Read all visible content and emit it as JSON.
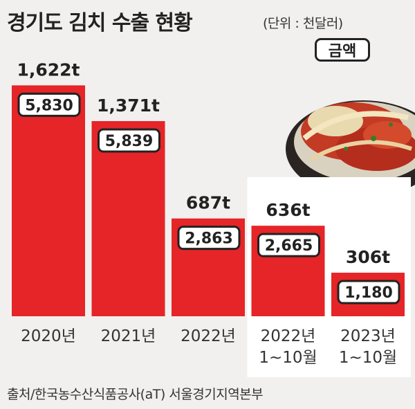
{
  "header": {
    "title": "경기도 김치 수출 현황",
    "unit": "(단위 : 천달러)",
    "legend_badge": "금액"
  },
  "footer": {
    "source": "출처/한국농수산식품공사(aT) 서울경기지역본부"
  },
  "colors": {
    "bar": "#e52528",
    "background": "#f1f0ee",
    "panel": "#ffffff",
    "text": "#222222"
  },
  "chart_data": {
    "type": "bar",
    "title": "경기도 김치 수출 현황",
    "categories": [
      [
        "2020년"
      ],
      [
        "2021년"
      ],
      [
        "2022년"
      ],
      [
        "2022년",
        "1~10월"
      ],
      [
        "2023년",
        "1~10월"
      ]
    ],
    "series": [
      {
        "name": "금액",
        "unit": "천달러",
        "values": [
          5830,
          5839,
          2863,
          2665,
          1180
        ],
        "labels": [
          "5,830",
          "5,839",
          "2,863",
          "2,665",
          "1,180"
        ]
      },
      {
        "unit": "t",
        "values": [
          1622,
          1371,
          687,
          636,
          306
        ],
        "labels": [
          "1,622t",
          "1,371t",
          "687t",
          "636t",
          "306t"
        ]
      }
    ],
    "bar_height_series": 1,
    "highlighted_categories": [
      3,
      4
    ]
  }
}
